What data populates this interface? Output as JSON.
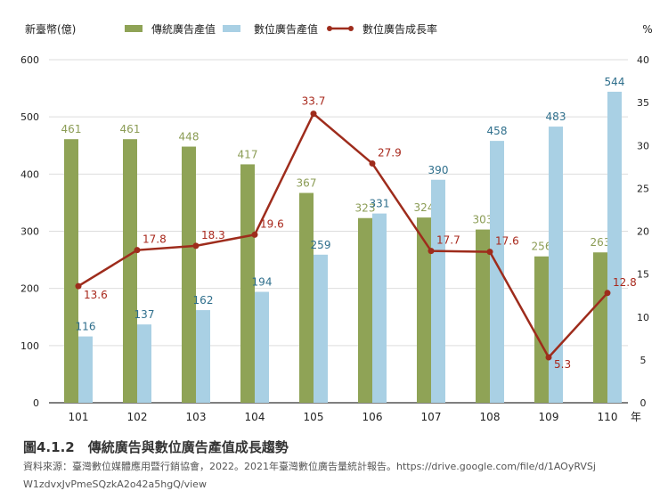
{
  "chart_data": {
    "type": "bar",
    "ylabel": "新臺幣(億)",
    "y2label": "%",
    "xunit": "年",
    "categories": [
      "101",
      "102",
      "103",
      "104",
      "105",
      "106",
      "107",
      "108",
      "109",
      "110"
    ],
    "ylim": [
      0,
      600
    ],
    "yticks": [
      0,
      100,
      200,
      300,
      400,
      500,
      600
    ],
    "y2lim": [
      0,
      40
    ],
    "y2ticks": [
      0,
      5,
      10,
      15,
      20,
      25,
      30,
      35,
      40
    ],
    "grid": true,
    "legend": "top",
    "series": [
      {
        "name": "傳統廣告產值",
        "kind": "bar",
        "axis": "left",
        "color": "#8fa356",
        "label_color": "#8b9c55",
        "values": [
          461,
          461,
          448,
          417,
          367,
          323,
          324,
          303,
          256,
          263
        ]
      },
      {
        "name": "數位廣告產值",
        "kind": "bar",
        "axis": "left",
        "color": "#a9d0e4",
        "label_color": "#2f6f8c",
        "values": [
          116,
          137,
          162,
          194,
          259,
          331,
          390,
          458,
          483,
          544
        ]
      },
      {
        "name": "數位廣告成長率",
        "kind": "line",
        "axis": "right",
        "color": "#9e2c1c",
        "label_color": "#a8281c",
        "values": [
          13.6,
          17.8,
          18.3,
          19.6,
          33.7,
          27.9,
          17.7,
          17.6,
          5.3,
          12.8
        ]
      }
    ]
  },
  "caption": {
    "title": "圖4.1.2　傳統廣告與數位廣告產值成長趨勢",
    "source_line1": "資料來源：臺灣數位媒體應用暨行銷協會，2022。2021年臺灣數位廣告量統計報告。https://drive.google.com/file/d/1AOyRVSj",
    "source_line2": "W1zdvxJvPmeSQzkA2o42a5hgQ/view"
  }
}
